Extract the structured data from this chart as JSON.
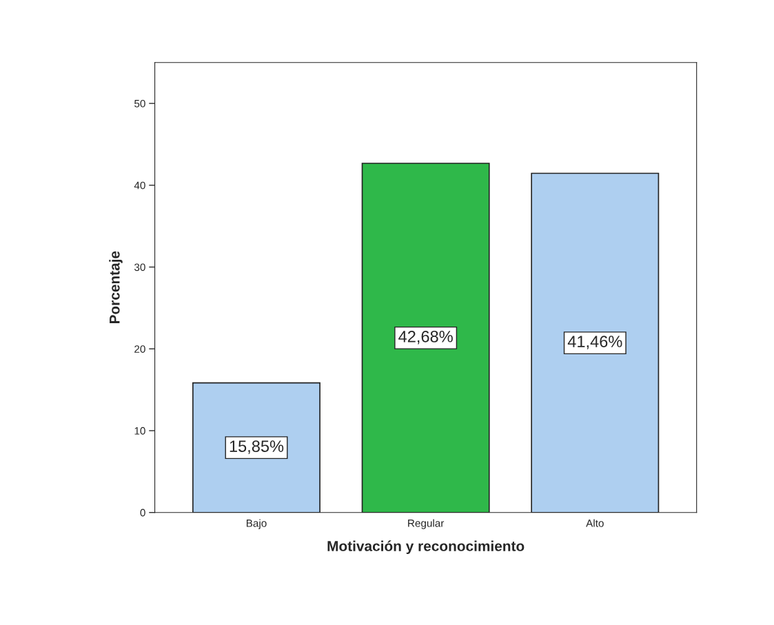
{
  "chart_data": {
    "type": "bar",
    "xlabel": "Motivación y reconocimiento",
    "ylabel": "Porcentaje",
    "categories": [
      "Bajo",
      "Regular",
      "Alto"
    ],
    "values": [
      15.85,
      42.68,
      41.46
    ],
    "colors": [
      "#aecff0",
      "#2fb84a",
      "#aecff0"
    ],
    "value_labels": [
      "15,85%",
      "42,68%",
      "41,46%"
    ],
    "ylim": [
      0,
      55
    ],
    "yticks": [
      0,
      10,
      20,
      30,
      40,
      50
    ],
    "grid": false,
    "legend": false
  }
}
